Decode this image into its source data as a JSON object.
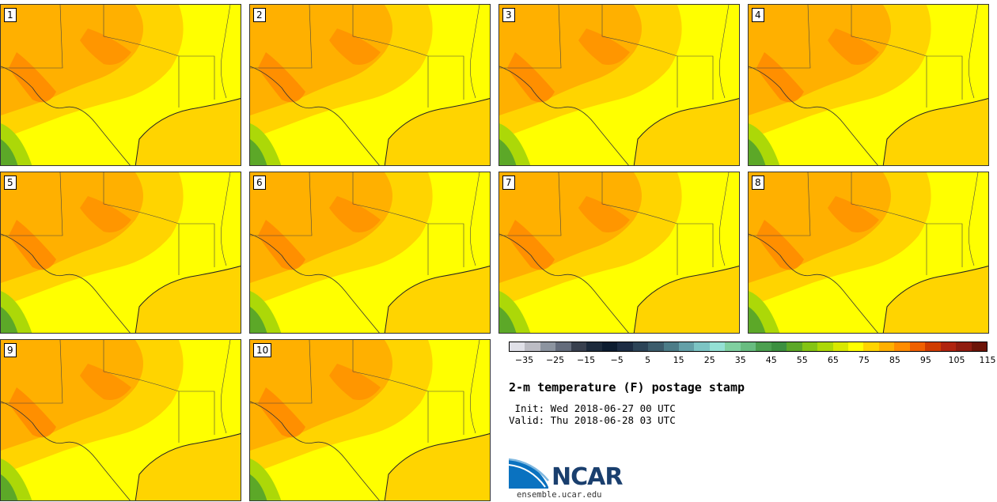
{
  "panels": [
    {
      "label": "1"
    },
    {
      "label": "2"
    },
    {
      "label": "3"
    },
    {
      "label": "4"
    },
    {
      "label": "5"
    },
    {
      "label": "6"
    },
    {
      "label": "7"
    },
    {
      "label": "8"
    },
    {
      "label": "9"
    },
    {
      "label": "10"
    }
  ],
  "colorbar": {
    "colors": [
      "#e0e0e8",
      "#bcbcc4",
      "#8c94a0",
      "#646c7c",
      "#38404f",
      "#1c2a3c",
      "#0c1c30",
      "#1c2c44",
      "#2c4458",
      "#3c5c6c",
      "#4c7c88",
      "#64a0a8",
      "#7cc4c4",
      "#94e0d4",
      "#80d0a0",
      "#68bc80",
      "#4ca050",
      "#3c9040",
      "#5ca828",
      "#84c414",
      "#acd808",
      "#d8e800",
      "#ffff00",
      "#ffd400",
      "#ffb000",
      "#ff8c00",
      "#f06000",
      "#d03c00",
      "#b02410",
      "#901c10",
      "#6c1408"
    ],
    "tick_labels": [
      "−35",
      "−25",
      "−15",
      "−5",
      "5",
      "15",
      "25",
      "35",
      "45",
      "55",
      "65",
      "75",
      "85",
      "95",
      "105",
      "115"
    ]
  },
  "title": "2-m temperature (F) postage stamp",
  "init_line": " Init: Wed 2018-06-27 00 UTC",
  "valid_line": "Valid: Thu 2018-06-28 03 UTC",
  "logo": {
    "text": "NCAR",
    "url": "ensemble.ucar.edu"
  }
}
